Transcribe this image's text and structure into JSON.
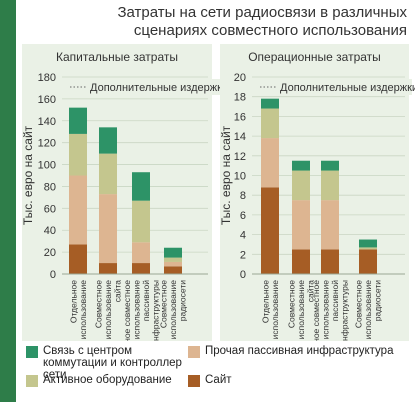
{
  "title_lines": [
    "Затраты на сети радиосвязи в различных",
    "сценариях совместного использования"
  ],
  "colors": {
    "background": "#ffffff",
    "panel": "#eaf1e6",
    "stripe": "#2e7d49",
    "grid": "#c9d6c3",
    "text": "#333333",
    "series": [
      "#a65d25",
      "#ddb591",
      "#c4c68e",
      "#2d9367"
    ]
  },
  "chart_data": [
    {
      "type": "bar",
      "stacked": true,
      "title": "Капитальные затраты",
      "annotation": "Дополнительные издержки",
      "ylabel": "Тыс. евро на сайт",
      "ylim": [
        0,
        180
      ],
      "yticks": [
        0,
        20,
        40,
        60,
        80,
        100,
        120,
        140,
        160,
        180
      ],
      "grid": true,
      "categories": [
        [
          "Отдельное",
          "использование"
        ],
        [
          "Совместное",
          "использование",
          "сайта"
        ],
        [
          "Полное совместное",
          "использование",
          "пассивной",
          "инфраструктуры"
        ],
        [
          "Совместное",
          "использование",
          "радиосети"
        ]
      ],
      "series": [
        {
          "name": "Сайт",
          "values": [
            27,
            10,
            10,
            7
          ]
        },
        {
          "name": "Прочая пассивная инфраструктура",
          "values": [
            63,
            63,
            19,
            4
          ]
        },
        {
          "name": "Активное оборудование",
          "values": [
            38,
            37,
            38,
            4
          ]
        },
        {
          "name": "Связь с центром коммутации и контроллер сети",
          "values": [
            24,
            24,
            26,
            9
          ]
        }
      ]
    },
    {
      "type": "bar",
      "stacked": true,
      "title": "Операционные затраты",
      "annotation": "Дополнительные издержки",
      "ylabel": "Тыс. евро на сайт",
      "ylim": [
        0,
        20
      ],
      "yticks": [
        0,
        2,
        4,
        6,
        8,
        10,
        12,
        14,
        16,
        18,
        20
      ],
      "grid": true,
      "categories": [
        [
          "Отдельное",
          "использование"
        ],
        [
          "Совместное",
          "использование",
          "сайта"
        ],
        [
          "Полное совместное",
          "использование",
          "пассивной",
          "инфраструктуры"
        ],
        [
          "Совместное",
          "использование",
          "радиосети"
        ]
      ],
      "series": [
        {
          "name": "Сайт",
          "values": [
            8.8,
            2.5,
            2.5,
            2.5
          ]
        },
        {
          "name": "Прочая пассивная инфраструктура",
          "values": [
            5.0,
            5.0,
            5.0,
            0
          ]
        },
        {
          "name": "Активное оборудование",
          "values": [
            3.0,
            3.0,
            3.0,
            0.2
          ]
        },
        {
          "name": "Связь с центром коммутации и контроллер сети",
          "values": [
            1.0,
            1.0,
            1.0,
            0.8
          ]
        }
      ]
    }
  ],
  "legend": [
    "Связь с центром коммутации и контроллер сети",
    "Прочая пассивная инфраструктура",
    "Активное оборудование",
    "Сайт"
  ]
}
